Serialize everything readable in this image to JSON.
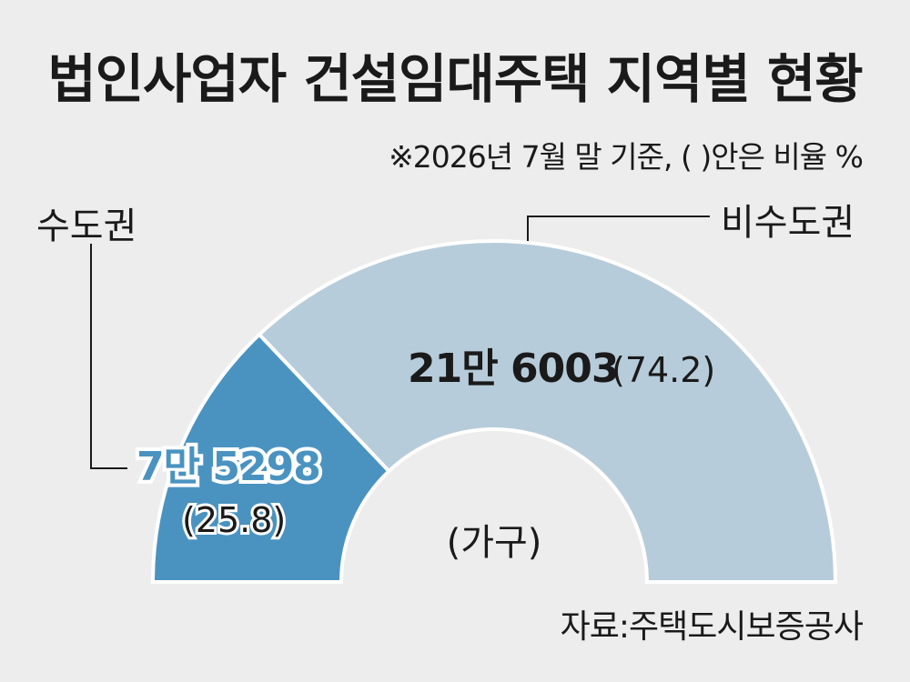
{
  "title": "법인사업자 건설임대주택 지역별 현황",
  "note": "※2026년 7월 말 기준, (  )안은 비율 %",
  "source": "자료:주택도시보증공사",
  "center_label": "(가구)",
  "colors": {
    "metro": "#4a93c1",
    "non_metro": "#b7ccda",
    "background": "#ededed"
  },
  "chart_data": {
    "type": "pie",
    "variant": "half-donut",
    "title": "법인사업자 건설임대주택 지역별 현황",
    "unit": "가구",
    "categories": [
      "수도권",
      "비수도권"
    ],
    "values": [
      75298,
      216003
    ],
    "percents": [
      25.8,
      74.2
    ],
    "value_labels": [
      "7만 5298",
      "21만 6003"
    ],
    "percent_labels": [
      "(25.8)",
      "(74.2)"
    ]
  }
}
